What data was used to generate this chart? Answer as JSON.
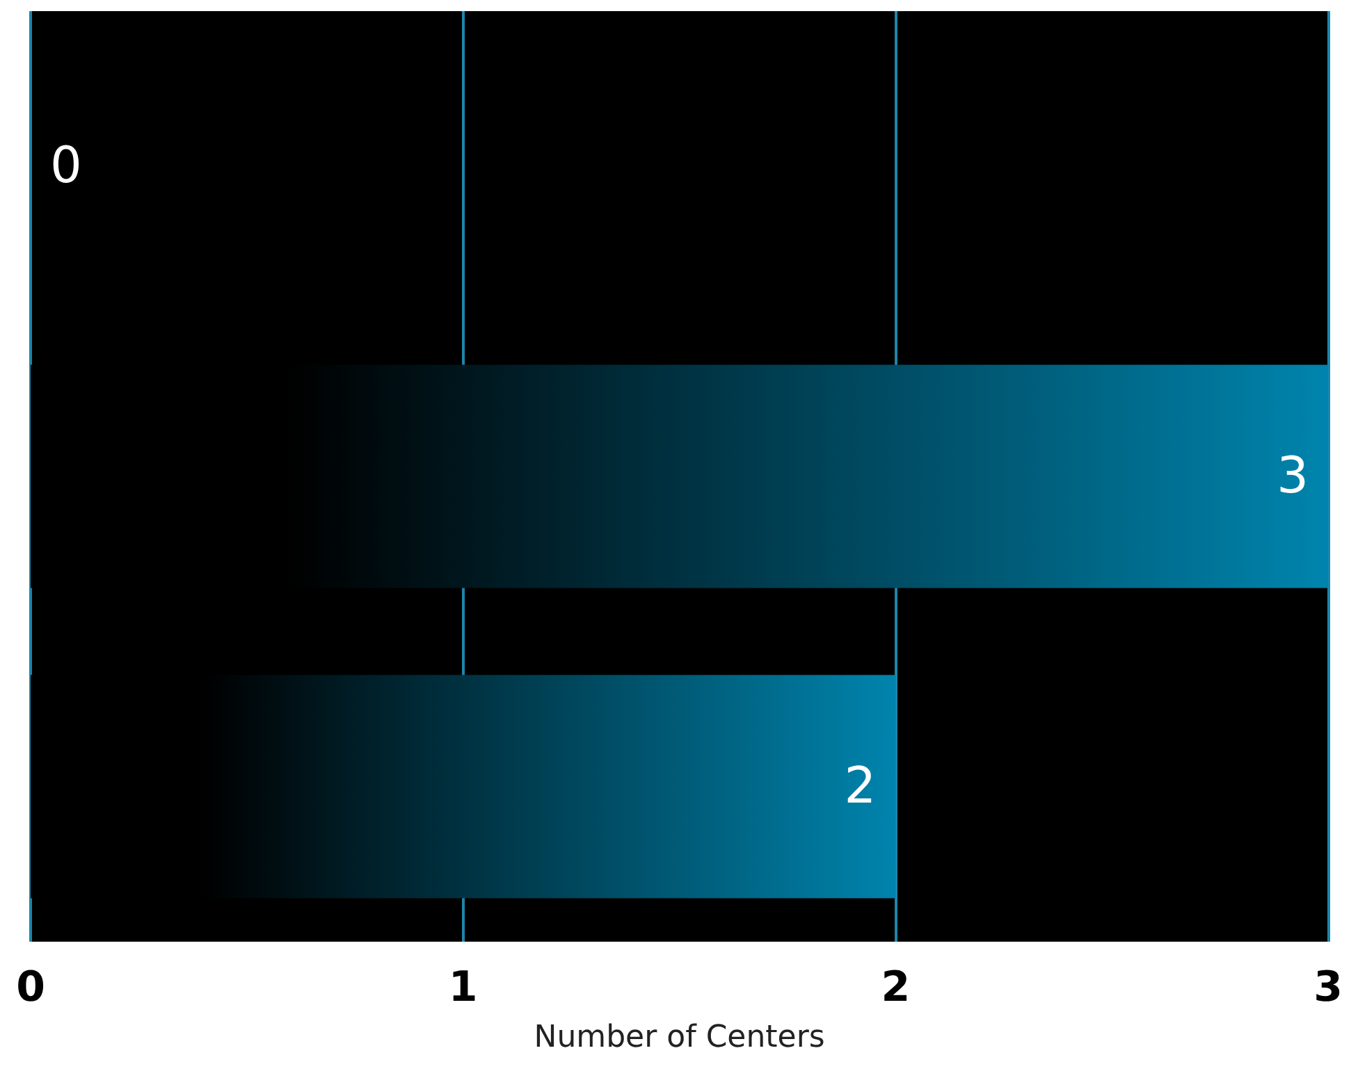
{
  "chart_data": {
    "type": "bar",
    "orientation": "horizontal",
    "categories": [
      null,
      null,
      null
    ],
    "values": [
      0,
      3,
      2
    ],
    "color": "#0084ad",
    "xlabel": "Number of Centers",
    "xlim": [
      0,
      3
    ],
    "xticks": [
      0,
      1,
      2,
      3
    ],
    "grid": "x",
    "data_labels": true,
    "tick_labels": "x"
  }
}
